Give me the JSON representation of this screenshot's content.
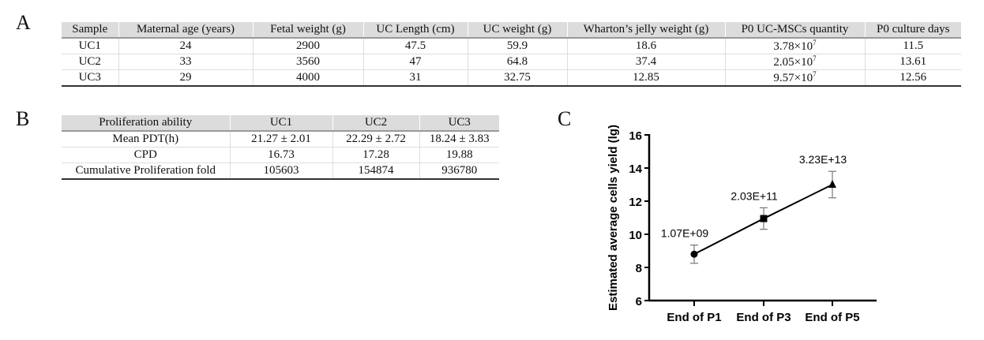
{
  "panel_labels": {
    "a": "A",
    "b": "B",
    "c": "C"
  },
  "table_a": {
    "headers": [
      "Sample",
      "Maternal age (years)",
      "Fetal weight (g)",
      "UC Length (cm)",
      "UC weight (g)",
      "Wharton’s jelly weight (g)",
      "P0 UC-MSCs quantity",
      "P0 culture days"
    ],
    "rows": [
      [
        "UC1",
        "24",
        "2900",
        "47.5",
        "59.9",
        "18.6",
        "3.78×10",
        "11.5"
      ],
      [
        "UC2",
        "33",
        "3560",
        "47",
        "64.8",
        "37.4",
        "2.05×10",
        "13.61"
      ],
      [
        "UC3",
        "29",
        "4000",
        "31",
        "32.75",
        "12.85",
        "9.57×10",
        "12.56"
      ]
    ],
    "quantity_exponent": "7"
  },
  "table_b": {
    "headers": [
      "Proliferation ability",
      "UC1",
      "UC2",
      "UC3"
    ],
    "rows": [
      [
        "Mean PDT(h)",
        "21.27 ± 2.01",
        "22.29 ± 2.72",
        "18.24 ± 3.83"
      ],
      [
        "CPD",
        "16.73",
        "17.28",
        "19.88"
      ],
      [
        "Cumulative Proliferation fold",
        "105603",
        "154874",
        "936780"
      ]
    ]
  },
  "chart_data": {
    "type": "line",
    "ylabel": "Estimated average cells yield (lg)",
    "xlabel": "",
    "categories": [
      "End of P1",
      "End of P3",
      "End of P5"
    ],
    "values": [
      8.8,
      10.95,
      13.0
    ],
    "errors": [
      0.55,
      0.65,
      0.8
    ],
    "markers": [
      "circle",
      "square",
      "triangle"
    ],
    "data_labels": [
      "1.07E+09",
      "2.03E+11",
      "3.23E+13"
    ],
    "ylim": [
      6,
      16
    ],
    "yticks": [
      "6",
      "8",
      "10",
      "12",
      "14",
      "16"
    ],
    "grid": false,
    "colors": {
      "line": "#000000",
      "error_bar": "#777777"
    }
  }
}
